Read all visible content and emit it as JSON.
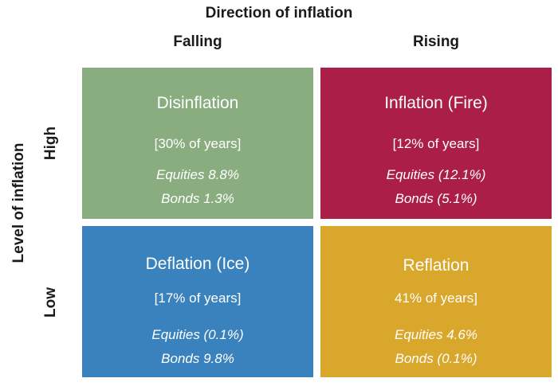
{
  "diagram": {
    "column_axis_title": "Direction of inflation",
    "row_axis_title": "Level of inflation",
    "columns": [
      "Falling",
      "Rising"
    ],
    "rows": [
      "High",
      "Low"
    ],
    "quadrants": [
      {
        "id": "disinflation",
        "title": "Disinflation",
        "share": "[30% of years]",
        "equities": "Equities 8.8%",
        "bonds": "Bonds 1.3%",
        "color": "#8aad7f"
      },
      {
        "id": "inflation",
        "title": "Inflation (Fire)",
        "share": "[12% of years]",
        "equities": "Equities (12.1%)",
        "bonds": "Bonds (5.1%)",
        "color": "#ab1e48"
      },
      {
        "id": "deflation",
        "title": "Deflation (Ice)",
        "share": "[17% of years]",
        "equities": "Equities (0.1%)",
        "bonds": "Bonds 9.8%",
        "color": "#3a82bd"
      },
      {
        "id": "reflation",
        "title": "Reflation",
        "share": "41% of years]",
        "equities": "Equities 4.6%",
        "bonds": "Bonds (0.1%)",
        "color": "#d9a72b"
      }
    ]
  }
}
